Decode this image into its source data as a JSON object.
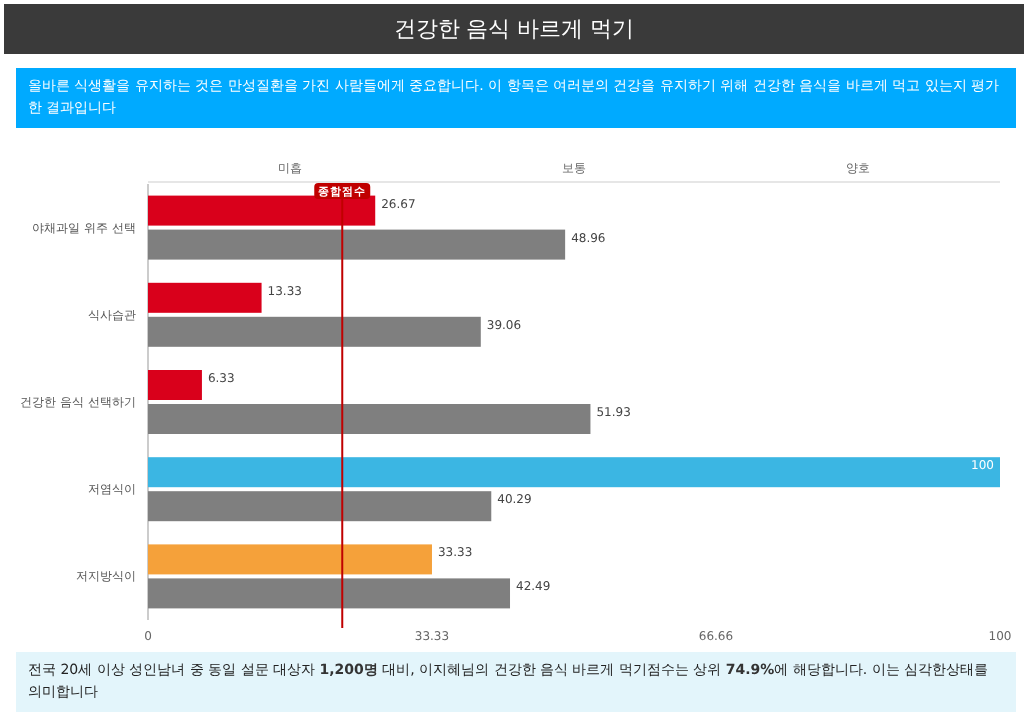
{
  "chart_data": {
    "type": "bar",
    "orientation": "horizontal",
    "title": "건강한 음식 바르게 먹기",
    "subtitle": "올바른 식생활을 유지하는 것은 만성질환을 가진 사람들에게 중요합니다. 이 항목은 여러분의 건강을 유지하기 위해 건강한 음식을 바르게 먹고 있는지 평가한 결과입니다",
    "categories": [
      "야채과일 위주 선택",
      "식사습관",
      "건강한 음식 선택하기",
      "저염식이",
      "저지방식이"
    ],
    "series": [
      {
        "colors": [
          "#d9001b",
          "#d9001b",
          "#d9001b",
          "#3bb6e3",
          "#f5a13a"
        ],
        "values": [
          26.67,
          13.33,
          6.33,
          100,
          33.33
        ]
      },
      {
        "color": "#7f7f7f",
        "values": [
          48.96,
          39.06,
          51.93,
          40.29,
          42.49
        ]
      }
    ],
    "xlim": [
      0,
      100
    ],
    "xticks": [
      0,
      33.33,
      66.66,
      100
    ],
    "data_labels": true,
    "grid": false,
    "ref_lines": [
      {
        "axis": "x",
        "value": 22.8,
        "label": "종합점수",
        "color": "#c00000"
      }
    ],
    "annotations": [
      "미흡",
      "보통",
      "양호",
      "전국 20세 이상 성인남녀 중 동일 설문 대상자 **1,200명** 대비, 이지혜님의 건강한 음식 바르게 먹기점수는 상위 **74.9%**에 해당합니다. 이는 심각한상태를 의미합니다"
    ]
  }
}
